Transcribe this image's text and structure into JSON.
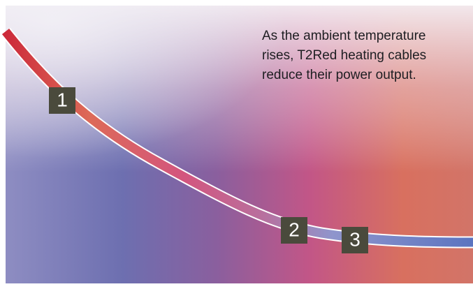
{
  "caption": [
    "As the ambient temperature",
    "rises, T2Red heating cables",
    "reduce their power output."
  ],
  "markers": [
    "1",
    "2",
    "3"
  ]
}
